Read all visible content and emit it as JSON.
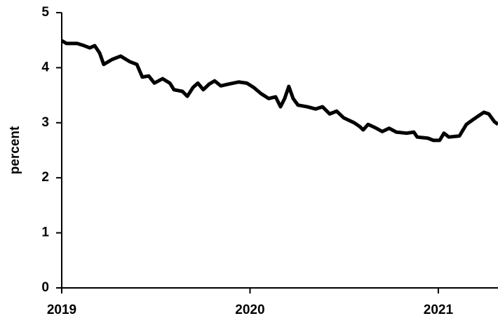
{
  "chart_data": {
    "type": "line",
    "ylabel": "percent",
    "x": [
      2019.0,
      2019.026,
      2019.082,
      2019.119,
      2019.149,
      2019.175,
      2019.201,
      2019.223,
      2019.268,
      2019.313,
      2019.361,
      2019.399,
      2019.428,
      2019.462,
      2019.492,
      2019.536,
      2019.574,
      2019.596,
      2019.641,
      2019.667,
      2019.697,
      2019.723,
      2019.752,
      2019.782,
      2019.812,
      2019.845,
      2019.883,
      2019.939,
      2019.983,
      2020.02,
      2020.058,
      2020.099,
      2020.136,
      2020.162,
      2020.184,
      2020.206,
      2020.229,
      2020.255,
      2020.304,
      2020.348,
      2020.385,
      2020.423,
      2020.46,
      2020.497,
      2020.553,
      2020.583,
      2020.601,
      2020.627,
      2020.665,
      2020.702,
      2020.739,
      2020.777,
      2020.832,
      2020.87,
      2020.888,
      2020.944,
      2020.974,
      2021.007,
      2021.03,
      2021.056,
      2021.112,
      2021.149,
      2021.186,
      2021.216,
      2021.242,
      2021.268,
      2021.298,
      2021.317
    ],
    "series": [
      {
        "color": "#000000",
        "values": [
          4.49,
          4.44,
          4.44,
          4.4,
          4.36,
          4.4,
          4.27,
          4.06,
          4.15,
          4.21,
          4.11,
          4.06,
          3.83,
          3.85,
          3.72,
          3.8,
          3.72,
          3.6,
          3.57,
          3.48,
          3.64,
          3.72,
          3.6,
          3.7,
          3.76,
          3.67,
          3.7,
          3.74,
          3.72,
          3.64,
          3.53,
          3.44,
          3.47,
          3.29,
          3.44,
          3.66,
          3.44,
          3.32,
          3.29,
          3.25,
          3.29,
          3.16,
          3.21,
          3.09,
          3.0,
          2.93,
          2.87,
          2.97,
          2.91,
          2.84,
          2.9,
          2.83,
          2.81,
          2.83,
          2.74,
          2.72,
          2.68,
          2.68,
          2.81,
          2.74,
          2.76,
          2.97,
          3.06,
          3.13,
          3.19,
          3.16,
          3.02,
          2.97
        ]
      }
    ],
    "xlim": [
      2019,
      2021.317
    ],
    "xticks": [
      2019,
      2020,
      2021
    ],
    "ylim": [
      0,
      5
    ],
    "yticks": [
      0,
      1,
      2,
      3,
      4,
      5
    ]
  }
}
